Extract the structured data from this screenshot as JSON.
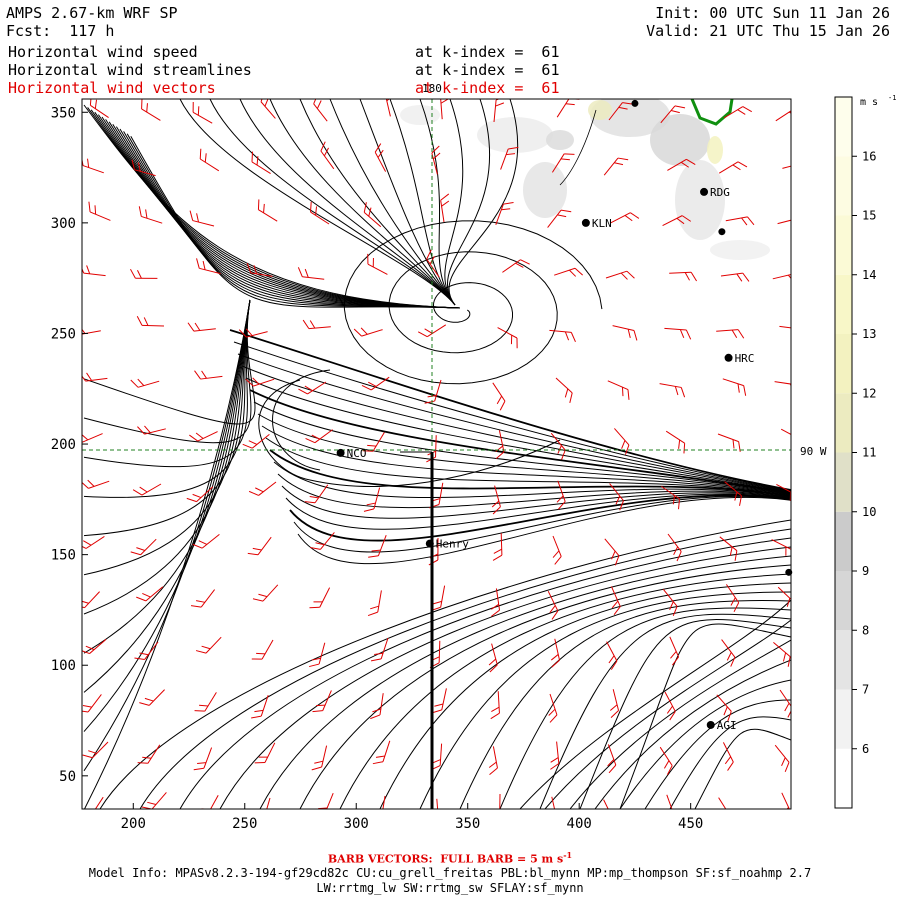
{
  "header": {
    "model_title": "AMPS 2.67-km WRF SP",
    "forecast": "Fcst:  117 h",
    "init": "Init: 00 UTC Sun 11 Jan 26",
    "valid": "Valid: 21 UTC Thu 15 Jan 26",
    "field1_name": "Horizontal wind speed",
    "field2_name": "Horizontal wind streamlines",
    "field3_name": "Horizontal wind vectors",
    "field1_level": "at k-index =  61",
    "field2_level": "at k-index =  61",
    "field3_level": "at k-index =  61"
  },
  "map": {
    "x_ticks": [
      "200",
      "250",
      "300",
      "350",
      "400",
      "450"
    ],
    "y_ticks": [
      "50",
      "100",
      "150",
      "200",
      "250",
      "300",
      "350"
    ],
    "meridian_label": "180",
    "parallel_label": "90 W",
    "stations": [
      {
        "name": "KLN",
        "x": 403,
        "y": 300
      },
      {
        "name": "RDG",
        "x": 456,
        "y": 314
      },
      {
        "name": "HRC",
        "x": 467,
        "y": 239
      },
      {
        "name": "NCO",
        "x": 293,
        "y": 196
      },
      {
        "name": "Henry",
        "x": 333,
        "y": 155
      },
      {
        "name": "AGI",
        "x": 459,
        "y": 73
      }
    ],
    "unlabeled_stations": [
      {
        "x": 425,
        "y": 354
      },
      {
        "x": 494,
        "y": 142
      },
      {
        "x": 464,
        "y": 296
      }
    ]
  },
  "colorbar": {
    "unit": "m s",
    "unit_sup": "-1",
    "labels": [
      "6",
      "7",
      "8",
      "9",
      "10",
      "11",
      "12",
      "13",
      "14",
      "15",
      "16"
    ],
    "colors": [
      "#ffffff",
      "#f2f2f2",
      "#e4e4e4",
      "#d6d6d6",
      "#cbcbcb",
      "#e0e0c8",
      "#ecebc0",
      "#f3f2c0",
      "#f8f7c8",
      "#fbfad6",
      "#fdfce2",
      "#fefeec"
    ]
  },
  "footer": {
    "barb_note": "BARB VECTORS:  FULL BARB = 5 m s",
    "barb_sup": "-1",
    "model_info": "Model Info: MPASv8.2.3-194-gf29cd82c CU:cu_grell_freitas PBL:bl_mynn MP:mp_thompson SF:sf_noahmp 2.7",
    "physics": "LW:rrtmg_lw SW:rrtmg_sw SFLAY:sf_mynn"
  },
  "colors": {
    "barb": "#e00000",
    "streamline": "#000000",
    "gridline": "#208020",
    "coast": "#109010"
  }
}
